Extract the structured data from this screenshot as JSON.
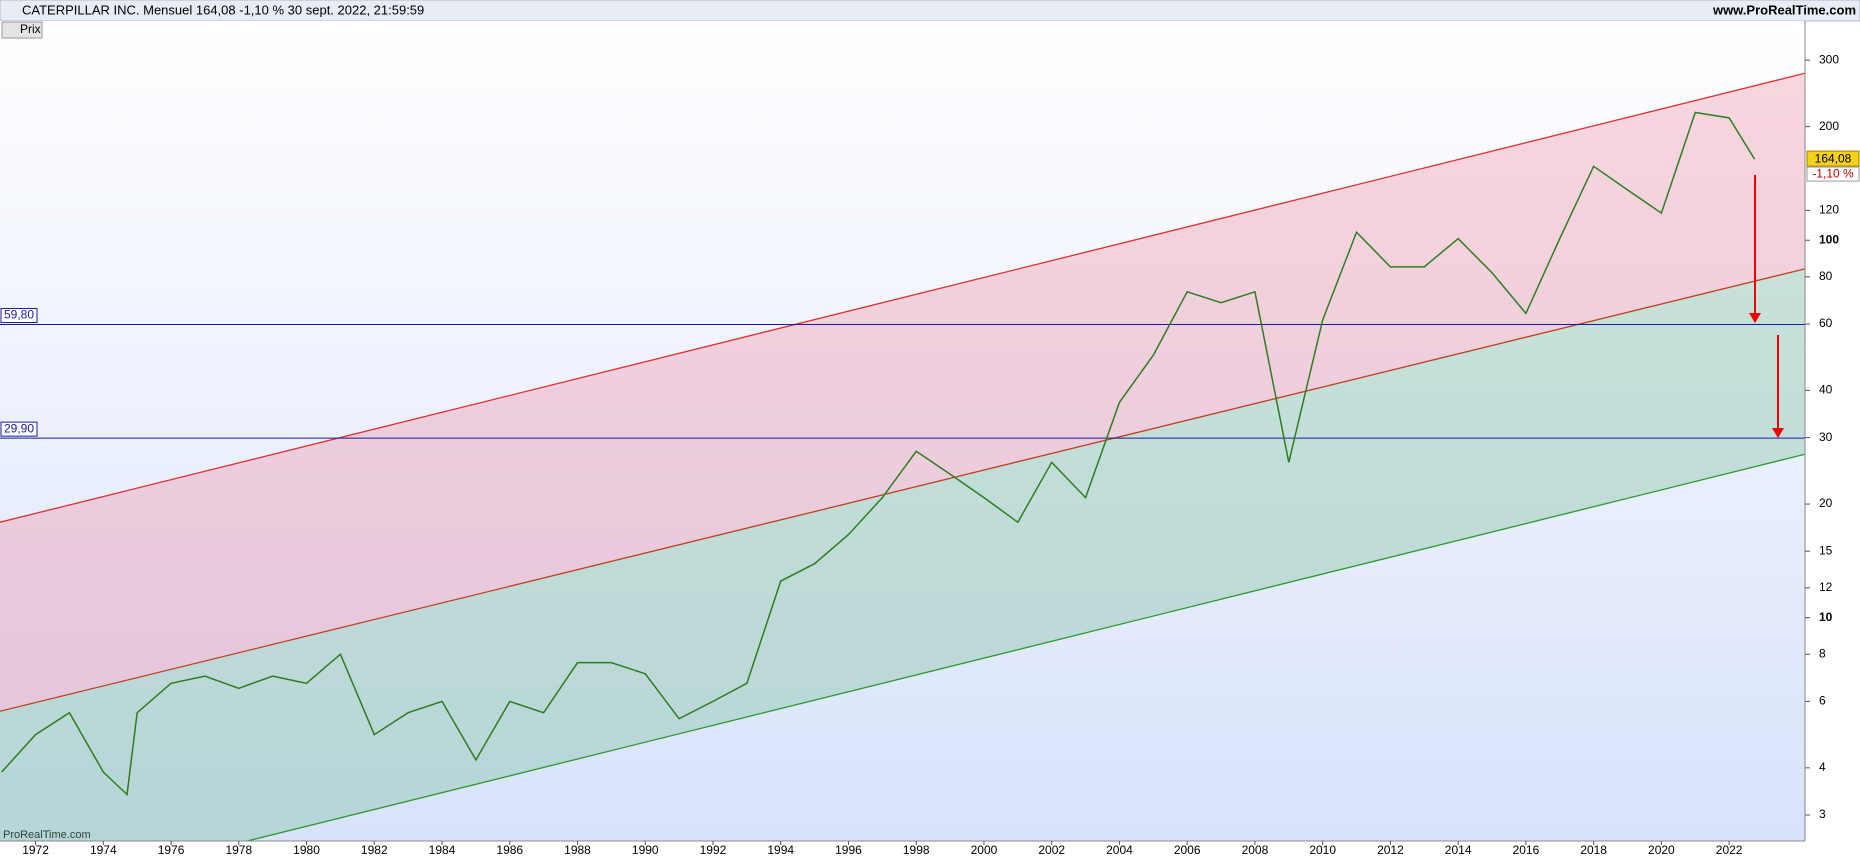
{
  "chart_data": {
    "type": "line",
    "title": "CATERPILLAR INC. Mensuel 164,08 -1,10 % 30 sept. 2022, 21:59:59",
    "site": "www.ProRealTime.com",
    "indicator": "Prix",
    "watermark": "ProRealTime.com",
    "last_label": "164,08",
    "change_label": "-1,10 %",
    "log_scale": true,
    "xlim": [
      1970.95,
      2024.24
    ],
    "xticks": [
      1972,
      1974,
      1976,
      1978,
      1980,
      1982,
      1984,
      1986,
      1988,
      1990,
      1992,
      1994,
      1996,
      1998,
      2000,
      2002,
      2004,
      2006,
      2008,
      2010,
      2012,
      2014,
      2016,
      2018,
      2020,
      2022
    ],
    "ylim": [
      2.56,
      381
    ],
    "yticks": [
      3,
      4,
      6,
      8,
      10,
      12,
      15,
      20,
      30,
      40,
      60,
      80,
      100,
      120,
      200,
      300
    ],
    "x": [
      1971,
      1972,
      1973,
      1974,
      1974.7,
      1975,
      1976,
      1977,
      1978,
      1979,
      1980,
      1981,
      1982,
      1983,
      1984,
      1985,
      1986,
      1987,
      1988,
      1989,
      1990,
      1991,
      1992,
      1993,
      1994,
      1995,
      1996,
      1997,
      1998,
      1999,
      2000,
      2001,
      2002,
      2003,
      2004,
      2005,
      2006,
      2007,
      2008,
      2009,
      2010,
      2011,
      2012,
      2013,
      2014,
      2015,
      2016,
      2017,
      2018,
      2019,
      2020,
      2021,
      2022,
      2022.75
    ],
    "series": [
      {
        "color": "#2e7d1e",
        "values": [
          3.9,
          4.9,
          5.6,
          3.9,
          3.4,
          5.6,
          6.7,
          7.0,
          6.5,
          7.0,
          6.7,
          8.0,
          4.9,
          5.6,
          6.0,
          4.2,
          6.0,
          5.6,
          7.6,
          7.6,
          7.1,
          5.4,
          6.0,
          6.7,
          12.5,
          13.9,
          16.6,
          20.8,
          27.6,
          24.0,
          20.8,
          17.9,
          25.8,
          20.8,
          37.2,
          49.6,
          73.0,
          68.3,
          73.0,
          25.8,
          61.5,
          105,
          85,
          85,
          101,
          82,
          64,
          101,
          157,
          136,
          118,
          218,
          211,
          164.08
        ]
      }
    ],
    "hlines": [
      {
        "value": 59.8,
        "label": "59,80",
        "color": "#1a1aa0"
      },
      {
        "value": 29.9,
        "label": "29,90",
        "color": "#1a1aa0"
      }
    ],
    "channels": [
      {
        "color": "#e03030",
        "x": [
          1970.95,
          2024.24
        ],
        "values": [
          17.9,
          277
        ]
      },
      {
        "color": "#c04020",
        "x": [
          1970.95,
          2024.24
        ],
        "values": [
          5.65,
          84
        ]
      },
      {
        "color": "#2e9a2e",
        "x": [
          1970.95,
          2024.24
        ],
        "values": [
          1.76,
          27.1
        ]
      }
    ],
    "band_colors": [
      "rgba(240,140,160,0.35)",
      "rgba(120,190,150,0.35)"
    ]
  }
}
